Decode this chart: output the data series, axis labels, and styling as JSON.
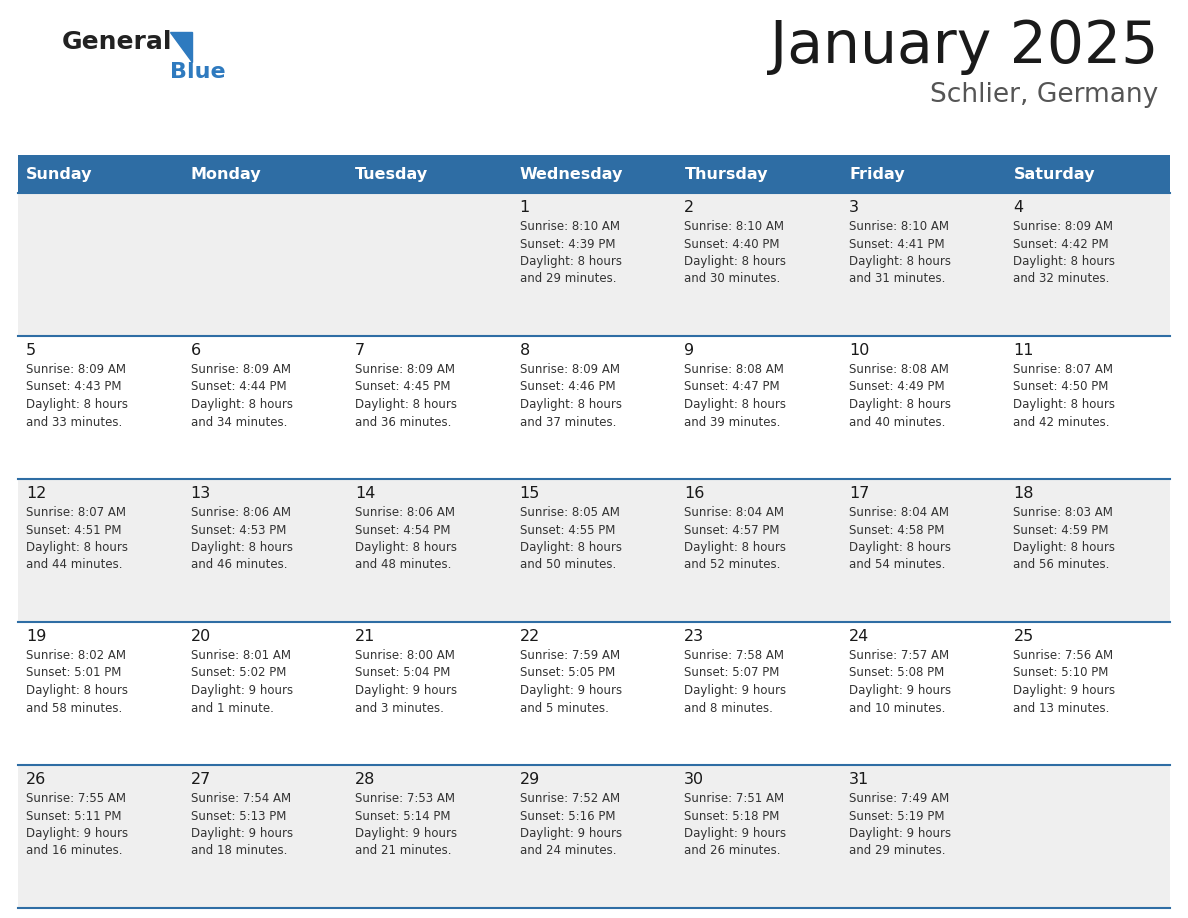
{
  "title": "January 2025",
  "subtitle": "Schlier, Germany",
  "header_bg": "#2E6DA4",
  "header_text": "#FFFFFF",
  "cell_bg_light": "#EFEFEF",
  "cell_bg_white": "#FFFFFF",
  "grid_line_color": "#2E6DA4",
  "number_color": "#1a1a1a",
  "text_color": "#333333",
  "logo_color": "#2E7ABF",
  "day_names": [
    "Sunday",
    "Monday",
    "Tuesday",
    "Wednesday",
    "Thursday",
    "Friday",
    "Saturday"
  ],
  "weeks": [
    [
      {
        "day": null,
        "info": ""
      },
      {
        "day": null,
        "info": ""
      },
      {
        "day": null,
        "info": ""
      },
      {
        "day": 1,
        "info": "Sunrise: 8:10 AM\nSunset: 4:39 PM\nDaylight: 8 hours\nand 29 minutes."
      },
      {
        "day": 2,
        "info": "Sunrise: 8:10 AM\nSunset: 4:40 PM\nDaylight: 8 hours\nand 30 minutes."
      },
      {
        "day": 3,
        "info": "Sunrise: 8:10 AM\nSunset: 4:41 PM\nDaylight: 8 hours\nand 31 minutes."
      },
      {
        "day": 4,
        "info": "Sunrise: 8:09 AM\nSunset: 4:42 PM\nDaylight: 8 hours\nand 32 minutes."
      }
    ],
    [
      {
        "day": 5,
        "info": "Sunrise: 8:09 AM\nSunset: 4:43 PM\nDaylight: 8 hours\nand 33 minutes."
      },
      {
        "day": 6,
        "info": "Sunrise: 8:09 AM\nSunset: 4:44 PM\nDaylight: 8 hours\nand 34 minutes."
      },
      {
        "day": 7,
        "info": "Sunrise: 8:09 AM\nSunset: 4:45 PM\nDaylight: 8 hours\nand 36 minutes."
      },
      {
        "day": 8,
        "info": "Sunrise: 8:09 AM\nSunset: 4:46 PM\nDaylight: 8 hours\nand 37 minutes."
      },
      {
        "day": 9,
        "info": "Sunrise: 8:08 AM\nSunset: 4:47 PM\nDaylight: 8 hours\nand 39 minutes."
      },
      {
        "day": 10,
        "info": "Sunrise: 8:08 AM\nSunset: 4:49 PM\nDaylight: 8 hours\nand 40 minutes."
      },
      {
        "day": 11,
        "info": "Sunrise: 8:07 AM\nSunset: 4:50 PM\nDaylight: 8 hours\nand 42 minutes."
      }
    ],
    [
      {
        "day": 12,
        "info": "Sunrise: 8:07 AM\nSunset: 4:51 PM\nDaylight: 8 hours\nand 44 minutes."
      },
      {
        "day": 13,
        "info": "Sunrise: 8:06 AM\nSunset: 4:53 PM\nDaylight: 8 hours\nand 46 minutes."
      },
      {
        "day": 14,
        "info": "Sunrise: 8:06 AM\nSunset: 4:54 PM\nDaylight: 8 hours\nand 48 minutes."
      },
      {
        "day": 15,
        "info": "Sunrise: 8:05 AM\nSunset: 4:55 PM\nDaylight: 8 hours\nand 50 minutes."
      },
      {
        "day": 16,
        "info": "Sunrise: 8:04 AM\nSunset: 4:57 PM\nDaylight: 8 hours\nand 52 minutes."
      },
      {
        "day": 17,
        "info": "Sunrise: 8:04 AM\nSunset: 4:58 PM\nDaylight: 8 hours\nand 54 minutes."
      },
      {
        "day": 18,
        "info": "Sunrise: 8:03 AM\nSunset: 4:59 PM\nDaylight: 8 hours\nand 56 minutes."
      }
    ],
    [
      {
        "day": 19,
        "info": "Sunrise: 8:02 AM\nSunset: 5:01 PM\nDaylight: 8 hours\nand 58 minutes."
      },
      {
        "day": 20,
        "info": "Sunrise: 8:01 AM\nSunset: 5:02 PM\nDaylight: 9 hours\nand 1 minute."
      },
      {
        "day": 21,
        "info": "Sunrise: 8:00 AM\nSunset: 5:04 PM\nDaylight: 9 hours\nand 3 minutes."
      },
      {
        "day": 22,
        "info": "Sunrise: 7:59 AM\nSunset: 5:05 PM\nDaylight: 9 hours\nand 5 minutes."
      },
      {
        "day": 23,
        "info": "Sunrise: 7:58 AM\nSunset: 5:07 PM\nDaylight: 9 hours\nand 8 minutes."
      },
      {
        "day": 24,
        "info": "Sunrise: 7:57 AM\nSunset: 5:08 PM\nDaylight: 9 hours\nand 10 minutes."
      },
      {
        "day": 25,
        "info": "Sunrise: 7:56 AM\nSunset: 5:10 PM\nDaylight: 9 hours\nand 13 minutes."
      }
    ],
    [
      {
        "day": 26,
        "info": "Sunrise: 7:55 AM\nSunset: 5:11 PM\nDaylight: 9 hours\nand 16 minutes."
      },
      {
        "day": 27,
        "info": "Sunrise: 7:54 AM\nSunset: 5:13 PM\nDaylight: 9 hours\nand 18 minutes."
      },
      {
        "day": 28,
        "info": "Sunrise: 7:53 AM\nSunset: 5:14 PM\nDaylight: 9 hours\nand 21 minutes."
      },
      {
        "day": 29,
        "info": "Sunrise: 7:52 AM\nSunset: 5:16 PM\nDaylight: 9 hours\nand 24 minutes."
      },
      {
        "day": 30,
        "info": "Sunrise: 7:51 AM\nSunset: 5:18 PM\nDaylight: 9 hours\nand 26 minutes."
      },
      {
        "day": 31,
        "info": "Sunrise: 7:49 AM\nSunset: 5:19 PM\nDaylight: 9 hours\nand 29 minutes."
      },
      {
        "day": null,
        "info": ""
      }
    ]
  ]
}
